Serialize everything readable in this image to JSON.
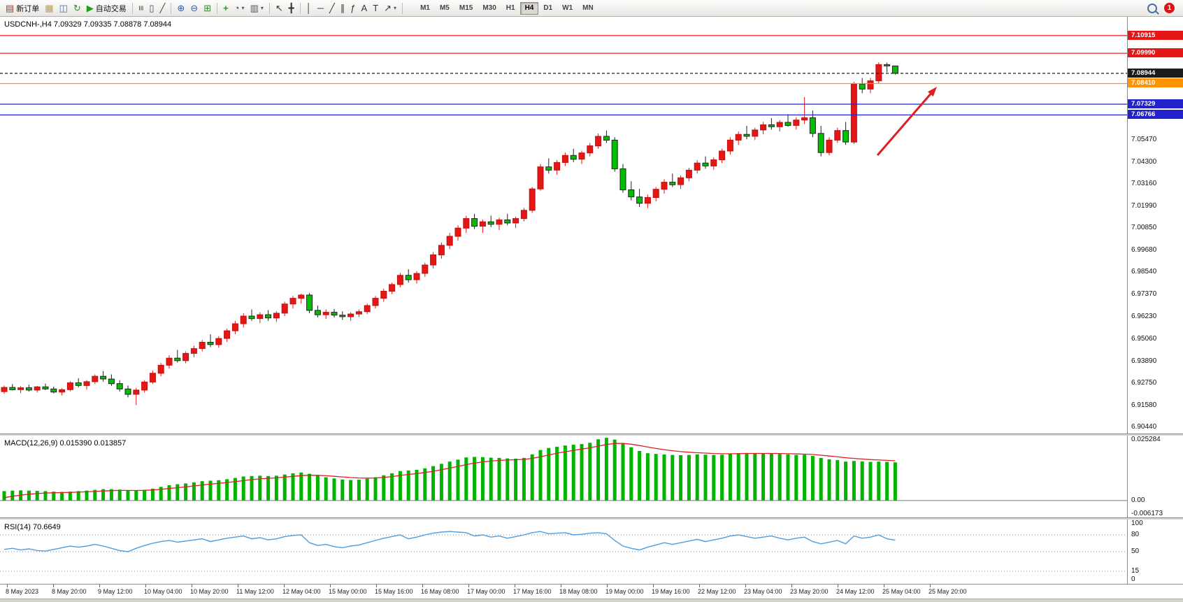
{
  "toolbar": {
    "notification_count": "1",
    "timeframes": [
      "M1",
      "M5",
      "M15",
      "M30",
      "H1",
      "H4",
      "D1",
      "W1",
      "MN"
    ],
    "active_timeframe": "H4",
    "items": [
      {
        "name": "new-order-button",
        "glyph": "▤",
        "color": "#b03030",
        "label": "新订单"
      },
      {
        "name": "charts-button",
        "glyph": "▦",
        "color": "#c8a21c"
      },
      {
        "name": "market-watch-button",
        "glyph": "◫",
        "color": "#4a6fa5"
      },
      {
        "name": "refresh-button",
        "glyph": "↻",
        "color": "#2a8f2a"
      },
      {
        "name": "autotrading-button",
        "glyph": "▶",
        "color": "#18a018",
        "label": "自动交易"
      },
      {
        "sep": true
      },
      {
        "name": "bar-chart-mode-button",
        "glyph": "≡",
        "color": "#444",
        "rot": true
      },
      {
        "name": "candlestick-mode-button",
        "glyph": "▯",
        "color": "#444"
      },
      {
        "name": "line-chart-mode-button",
        "glyph": "╱",
        "color": "#444"
      },
      {
        "sep": true
      },
      {
        "name": "zoom-in-button",
        "glyph": "⊕",
        "color": "#2a5db0"
      },
      {
        "name": "zoom-out-button",
        "glyph": "⊖",
        "color": "#2a5db0"
      },
      {
        "name": "tile-windows-button",
        "glyph": "⊞",
        "color": "#2a8f2a"
      },
      {
        "sep": true
      },
      {
        "name": "indicators-button",
        "glyph": "+",
        "color": "#18a018",
        "bold": true
      },
      {
        "name": "periods-button",
        "glyph": "◔",
        "color": "#555",
        "caret": true
      },
      {
        "name": "templates-button",
        "glyph": "▥",
        "color": "#555",
        "caret": true
      },
      {
        "sep": true
      },
      {
        "name": "cursor-button",
        "glyph": "↖",
        "color": "#333"
      },
      {
        "name": "crosshair-button",
        "glyph": "╋",
        "color": "#333"
      },
      {
        "sep": true
      },
      {
        "name": "vertical-line-button",
        "glyph": "│",
        "color": "#333"
      },
      {
        "name": "horizontal-line-button",
        "glyph": "─",
        "color": "#333"
      },
      {
        "name": "trendline-button",
        "glyph": "╱",
        "color": "#333"
      },
      {
        "name": "channel-button",
        "glyph": "∥",
        "color": "#333"
      },
      {
        "name": "fibonacci-button",
        "glyph": "ƒ",
        "color": "#333"
      },
      {
        "name": "text-button",
        "glyph": "A",
        "color": "#333"
      },
      {
        "name": "label-button",
        "glyph": "T",
        "color": "#333"
      },
      {
        "name": "arrows-button",
        "glyph": "↗",
        "color": "#333",
        "caret": true
      },
      {
        "sep": true
      }
    ]
  },
  "chart": {
    "header": "USDCNH-,H4  7.09329 7.09335 7.08878 7.08944",
    "macd_header": "MACD(12,26,9) 0.015390 0.013857",
    "rsi_header": "RSI(14) 70.6649"
  },
  "chart_data": {
    "type": "candlestick",
    "symbol": "USDCNH",
    "timeframe": "H4",
    "ohlc_current_bar": {
      "open": "7.09329",
      "high": "7.09335",
      "low": "7.08878",
      "close": "7.08944"
    },
    "colors": {
      "up": "#e41616",
      "up_stroke": "#c01010",
      "down": "#00c000",
      "down_stroke": "#222222",
      "macd_hist": "#00b400",
      "macd_signal": "#e02020",
      "rsi_line": "#4f9ddf",
      "line_red": "#e41616",
      "line_orange": "#ff9300",
      "line_blue": "#2222cc",
      "current_price_tag": "#1c1c1c"
    },
    "price_axis": [
      "7.05470",
      "7.04300",
      "7.03160",
      "7.01990",
      "7.00850",
      "6.99680",
      "6.98540",
      "6.97370",
      "6.96230",
      "6.95060",
      "6.93890",
      "6.92750",
      "6.91580",
      "6.90440"
    ],
    "price_lines": [
      {
        "value": 7.10915,
        "label": "7.10915",
        "color": "#e41616"
      },
      {
        "value": 7.0999,
        "label": "7.09990",
        "color": "#e41616"
      },
      {
        "value": 7.08944,
        "label": "7.08944",
        "color": "#1c1c1c",
        "dashed": true,
        "current": true
      },
      {
        "value": 7.0841,
        "label": "7.08410",
        "color": "#ff9300"
      },
      {
        "value": 7.07329,
        "label": "7.07329",
        "color": "#2222cc"
      },
      {
        "value": 7.06766,
        "label": "7.06766",
        "color": "#2222cc"
      }
    ],
    "time_labels": [
      "8 May 2023",
      "8 May 20:00",
      "9 May 12:00",
      "10 May 04:00",
      "10 May 20:00",
      "11 May 12:00",
      "12 May 04:00",
      "15 May 00:00",
      "15 May 16:00",
      "16 May 08:00",
      "17 May 00:00",
      "17 May 16:00",
      "18 May 08:00",
      "19 May 00:00",
      "19 May 16:00",
      "22 May 12:00",
      "23 May 04:00",
      "23 May 20:00",
      "24 May 12:00",
      "25 May 04:00",
      "25 May 20:00"
    ],
    "ohlc": [
      [
        6.923,
        6.9262,
        6.9218,
        6.9252
      ],
      [
        6.9252,
        6.927,
        6.9236,
        6.924
      ],
      [
        6.924,
        6.9258,
        6.9222,
        6.925
      ],
      [
        6.925,
        6.9266,
        6.923,
        6.9238
      ],
      [
        6.9238,
        6.926,
        6.9226,
        6.9255
      ],
      [
        6.9255,
        6.9272,
        6.9238,
        6.9244
      ],
      [
        6.9244,
        6.9256,
        6.922,
        6.9228
      ],
      [
        6.9228,
        6.9248,
        6.921,
        6.924
      ],
      [
        6.924,
        6.9284,
        6.9232,
        6.9276
      ],
      [
        6.9276,
        6.93,
        6.9252,
        6.9262
      ],
      [
        6.9262,
        6.929,
        6.924,
        6.9282
      ],
      [
        6.9282,
        6.932,
        6.927,
        6.931
      ],
      [
        6.931,
        6.9338,
        6.9282,
        6.9296
      ],
      [
        6.9296,
        6.932,
        6.926,
        6.9272
      ],
      [
        6.9272,
        6.929,
        6.923,
        6.9244
      ],
      [
        6.9244,
        6.9262,
        6.92,
        6.9216
      ],
      [
        6.9216,
        6.925,
        6.916,
        6.9238
      ],
      [
        6.9238,
        6.929,
        6.9226,
        6.928
      ],
      [
        6.928,
        6.934,
        6.927,
        6.9326
      ],
      [
        6.9326,
        6.938,
        6.931,
        6.9368
      ],
      [
        6.9368,
        6.942,
        6.935,
        6.9405
      ],
      [
        6.9405,
        6.9448,
        6.9382,
        6.9392
      ],
      [
        6.9392,
        6.944,
        6.9378,
        6.943
      ],
      [
        6.943,
        6.947,
        6.941,
        6.9455
      ],
      [
        6.9455,
        6.95,
        6.944,
        6.9488
      ],
      [
        6.9488,
        6.953,
        6.9462,
        6.9476
      ],
      [
        6.9476,
        6.952,
        6.946,
        6.9508
      ],
      [
        6.9508,
        6.956,
        6.949,
        6.9548
      ],
      [
        6.9548,
        6.96,
        6.953,
        6.9585
      ],
      [
        6.9585,
        6.964,
        6.9565,
        6.9625
      ],
      [
        6.9625,
        6.966,
        6.96,
        6.9612
      ],
      [
        6.9612,
        6.9645,
        6.9588,
        6.9632
      ],
      [
        6.9632,
        6.9656,
        6.96,
        6.9615
      ],
      [
        6.9615,
        6.965,
        6.9595,
        6.964
      ],
      [
        6.964,
        6.97,
        6.9625,
        6.9688
      ],
      [
        6.9688,
        6.973,
        6.9665,
        6.9718
      ],
      [
        6.9718,
        6.9742,
        6.969,
        6.9735
      ],
      [
        6.9735,
        6.9745,
        6.964,
        6.9655
      ],
      [
        6.9655,
        6.968,
        6.9618,
        6.9632
      ],
      [
        6.9632,
        6.966,
        6.961,
        6.9645
      ],
      [
        6.9645,
        6.9662,
        6.9618,
        6.963
      ],
      [
        6.963,
        6.965,
        6.9605,
        6.9622
      ],
      [
        6.9622,
        6.9645,
        6.96,
        6.9636
      ],
      [
        6.9636,
        6.966,
        6.962,
        6.9648
      ],
      [
        6.9648,
        6.969,
        6.9635,
        6.968
      ],
      [
        6.968,
        6.973,
        6.9665,
        6.9718
      ],
      [
        6.9718,
        6.9768,
        6.97,
        6.9755
      ],
      [
        6.9755,
        6.98,
        6.974,
        6.979
      ],
      [
        6.979,
        6.985,
        6.9775,
        6.9838
      ],
      [
        6.9838,
        6.987,
        6.98,
        6.9815
      ],
      [
        6.9815,
        6.986,
        6.9795,
        6.9848
      ],
      [
        6.9848,
        6.9905,
        6.983,
        6.9892
      ],
      [
        6.9892,
        6.996,
        6.9875,
        6.9945
      ],
      [
        6.9945,
        7.001,
        6.9925,
        6.9995
      ],
      [
        6.9995,
        7.006,
        6.9975,
        7.0042
      ],
      [
        7.0042,
        7.01,
        7.002,
        7.0085
      ],
      [
        7.0085,
        7.015,
        7.006,
        7.0135
      ],
      [
        7.0135,
        7.016,
        7.008,
        7.0095
      ],
      [
        7.0095,
        7.013,
        7.006,
        7.0118
      ],
      [
        7.0118,
        7.015,
        7.009,
        7.0105
      ],
      [
        7.0105,
        7.014,
        7.0075,
        7.0128
      ],
      [
        7.0128,
        7.016,
        7.01,
        7.0112
      ],
      [
        7.0112,
        7.0145,
        7.0085,
        7.0135
      ],
      [
        7.0135,
        7.019,
        7.012,
        7.0178
      ],
      [
        7.0178,
        7.03,
        7.0165,
        7.029
      ],
      [
        7.029,
        7.042,
        7.028,
        7.0405
      ],
      [
        7.0405,
        7.045,
        7.037,
        7.0388
      ],
      [
        7.0388,
        7.044,
        7.0365,
        7.0428
      ],
      [
        7.0428,
        7.048,
        7.041,
        7.0465
      ],
      [
        7.0465,
        7.05,
        7.043,
        7.0445
      ],
      [
        7.0445,
        7.049,
        7.042,
        7.0478
      ],
      [
        7.0478,
        7.053,
        7.046,
        7.0515
      ],
      [
        7.0515,
        7.058,
        7.05,
        7.0565
      ],
      [
        7.0565,
        7.0595,
        7.053,
        7.0545
      ],
      [
        7.0545,
        7.056,
        7.038,
        7.0395
      ],
      [
        7.0395,
        7.042,
        7.027,
        7.0285
      ],
      [
        7.0285,
        7.033,
        7.023,
        7.0248
      ],
      [
        7.0248,
        7.029,
        7.0195,
        7.0215
      ],
      [
        7.0215,
        7.026,
        7.019,
        7.0245
      ],
      [
        7.0245,
        7.03,
        7.0225,
        7.0288
      ],
      [
        7.0288,
        7.034,
        7.0265,
        7.0325
      ],
      [
        7.0325,
        7.037,
        7.03,
        7.0312
      ],
      [
        7.0312,
        7.036,
        7.029,
        7.0348
      ],
      [
        7.0348,
        7.04,
        7.033,
        7.0388
      ],
      [
        7.0388,
        7.044,
        7.037,
        7.0425
      ],
      [
        7.0425,
        7.046,
        7.0395,
        7.041
      ],
      [
        7.041,
        7.0455,
        7.039,
        7.0442
      ],
      [
        7.0442,
        7.05,
        7.0425,
        7.0488
      ],
      [
        7.0488,
        7.056,
        7.047,
        7.0545
      ],
      [
        7.0545,
        7.059,
        7.052,
        7.0575
      ],
      [
        7.0575,
        7.062,
        7.055,
        7.0565
      ],
      [
        7.0565,
        7.061,
        7.0545,
        7.0598
      ],
      [
        7.0598,
        7.064,
        7.0575,
        7.0625
      ],
      [
        7.0625,
        7.066,
        7.06,
        7.0615
      ],
      [
        7.0615,
        7.065,
        7.059,
        7.0638
      ],
      [
        7.0638,
        7.068,
        7.0615,
        7.0622
      ],
      [
        7.0622,
        7.0665,
        7.06,
        7.065
      ],
      [
        7.065,
        7.077,
        7.063,
        7.0662
      ],
      [
        7.0662,
        7.07,
        7.056,
        7.058
      ],
      [
        7.058,
        7.062,
        7.046,
        7.048
      ],
      [
        7.048,
        7.056,
        7.0465,
        7.0545
      ],
      [
        7.0545,
        7.061,
        7.053,
        7.0595
      ],
      [
        7.0595,
        7.064,
        7.052,
        7.0535
      ],
      [
        7.0535,
        7.085,
        7.0525,
        7.0838
      ],
      [
        7.0838,
        7.087,
        7.079,
        7.0812
      ],
      [
        7.0812,
        7.087,
        7.079,
        7.0855
      ],
      [
        7.0855,
        7.0952,
        7.084,
        7.094
      ],
      [
        7.094,
        7.095,
        7.09,
        7.0933
      ],
      [
        7.09329,
        7.09335,
        7.08878,
        7.08944
      ]
    ],
    "macd": {
      "label": "MACD(12,26,9)",
      "main_value": "0.015390",
      "signal_value": "0.013857",
      "scale_labels": [
        {
          "text": "0.025284",
          "value": 0.025284
        },
        {
          "text": "0.00",
          "value": 0.0
        },
        {
          "text": "-0.006173",
          "value": -0.006173
        }
      ],
      "values": [
        0.0038,
        0.004,
        0.0041,
        0.004,
        0.0039,
        0.0038,
        0.0036,
        0.0035,
        0.0036,
        0.0038,
        0.004,
        0.0043,
        0.0046,
        0.0046,
        0.0044,
        0.0041,
        0.004,
        0.0043,
        0.0048,
        0.0055,
        0.0062,
        0.0066,
        0.0069,
        0.0073,
        0.0078,
        0.008,
        0.0082,
        0.0086,
        0.0091,
        0.0097,
        0.0099,
        0.01,
        0.0099,
        0.01,
        0.0105,
        0.011,
        0.0113,
        0.0108,
        0.01,
        0.0094,
        0.0089,
        0.0085,
        0.0083,
        0.0084,
        0.0088,
        0.0094,
        0.0102,
        0.011,
        0.0119,
        0.0121,
        0.0124,
        0.013,
        0.0139,
        0.0148,
        0.0157,
        0.0165,
        0.0174,
        0.0176,
        0.0175,
        0.0173,
        0.0172,
        0.017,
        0.0169,
        0.0172,
        0.0186,
        0.0204,
        0.0212,
        0.0217,
        0.0222,
        0.0225,
        0.0228,
        0.0233,
        0.0247,
        0.0253,
        0.0246,
        0.0232,
        0.0215,
        0.02,
        0.0191,
        0.0188,
        0.0186,
        0.0184,
        0.0183,
        0.0184,
        0.0186,
        0.0185,
        0.0184,
        0.0185,
        0.0188,
        0.0191,
        0.0192,
        0.0191,
        0.0191,
        0.019,
        0.0188,
        0.0186,
        0.0184,
        0.0185,
        0.018,
        0.0172,
        0.0166,
        0.0163,
        0.0157,
        0.016,
        0.0158,
        0.0156,
        0.0157,
        0.0156,
        0.01539
      ]
    },
    "rsi": {
      "label": "RSI(14)",
      "value": "70.6649",
      "levels": [
        80,
        50,
        15
      ],
      "scale_labels": [
        {
          "text": "100",
          "value": 100
        },
        {
          "text": "80",
          "value": 80
        },
        {
          "text": "50",
          "value": 50
        },
        {
          "text": "15",
          "value": 15
        },
        {
          "text": "0",
          "value": 0
        }
      ],
      "values": [
        54,
        56,
        53,
        55,
        52,
        51,
        54,
        57,
        60,
        58,
        60,
        63,
        60,
        56,
        52,
        50,
        56,
        61,
        65,
        68,
        70,
        67,
        69,
        71,
        73,
        68,
        71,
        74,
        76,
        78,
        73,
        75,
        71,
        73,
        77,
        79,
        80,
        66,
        61,
        63,
        59,
        57,
        60,
        62,
        66,
        70,
        74,
        77,
        80,
        73,
        76,
        80,
        83,
        85,
        86,
        85,
        84,
        78,
        80,
        76,
        78,
        74,
        77,
        80,
        84,
        86,
        82,
        83,
        84,
        80,
        81,
        83,
        84,
        82,
        70,
        60,
        56,
        53,
        58,
        62,
        66,
        63,
        66,
        69,
        72,
        68,
        71,
        74,
        78,
        80,
        77,
        74,
        76,
        78,
        74,
        71,
        74,
        76,
        68,
        64,
        67,
        70,
        64,
        78,
        74,
        76,
        80,
        73,
        70.66
      ]
    },
    "annotation": {
      "type": "arrow",
      "color": "#e02020",
      "from": [
        1255,
        198
      ],
      "to": [
        1340,
        100
      ]
    }
  }
}
